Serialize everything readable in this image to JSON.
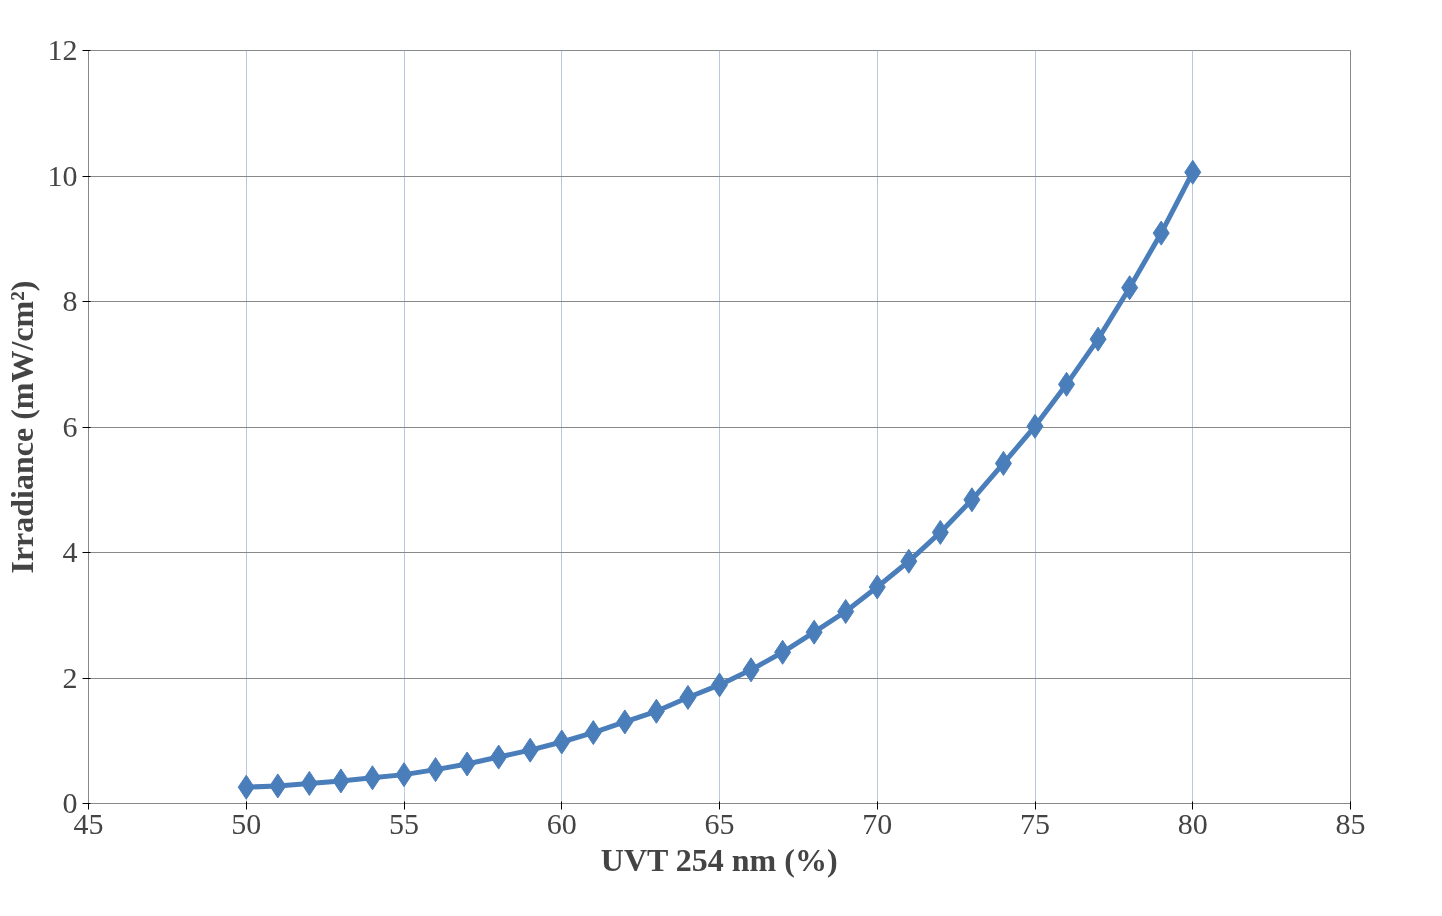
{
  "chart_data": {
    "type": "line",
    "xlabel": "UVT 254 nm (%)",
    "ylabel": "Irradiance (mW/cm²)",
    "x": [
      50,
      51,
      52,
      53,
      54,
      55,
      56,
      57,
      58,
      59,
      60,
      61,
      62,
      63,
      64,
      65,
      66,
      67,
      68,
      69,
      70,
      71,
      72,
      73,
      74,
      75,
      76,
      77,
      78,
      79,
      80
    ],
    "series": [
      {
        "color": "#4a7ebb",
        "values": [
          0.26,
          0.28,
          0.32,
          0.36,
          0.41,
          0.46,
          0.54,
          0.63,
          0.74,
          0.85,
          0.98,
          1.13,
          1.3,
          1.47,
          1.69,
          1.89,
          2.13,
          2.41,
          2.73,
          3.06,
          3.45,
          3.86,
          4.32,
          4.84,
          5.42,
          6.01,
          6.68,
          7.4,
          8.22,
          9.09,
          10.06
        ]
      }
    ],
    "xlim": [
      45,
      85
    ],
    "xticks": [
      45,
      50,
      55,
      60,
      65,
      70,
      75,
      80,
      85
    ],
    "ylim": [
      0,
      12
    ],
    "yticks": [
      0,
      2,
      4,
      6,
      8,
      10,
      12
    ],
    "grid": true,
    "marker": "diamond",
    "line_style": "solid"
  }
}
